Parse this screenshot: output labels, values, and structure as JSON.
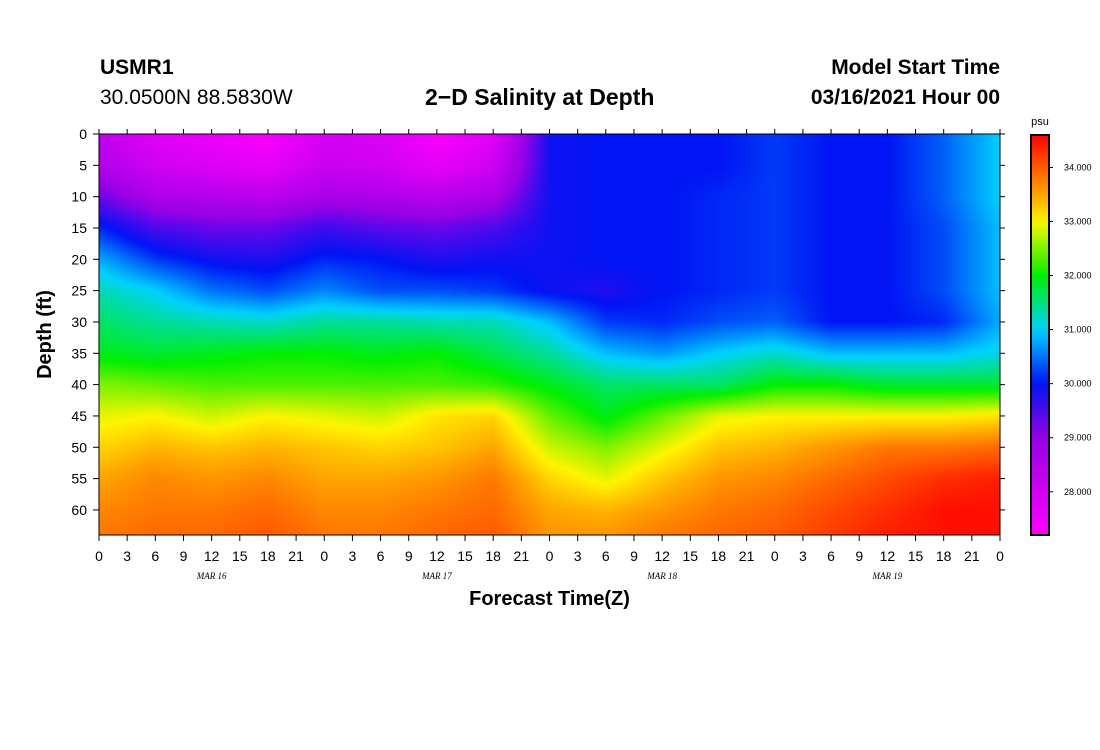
{
  "header": {
    "station": "USMR1",
    "coords": "30.0500N 88.5830W",
    "title": "2−D Salinity at Depth",
    "model_start_label": "Model Start Time",
    "model_start_value": "03/16/2021 Hour 00"
  },
  "chart_data": {
    "type": "heatmap",
    "title": "2-D Salinity at Depth",
    "xlabel": "Forecast Time(Z)",
    "ylabel": "Depth (ft)",
    "x_range_hours": [
      0,
      96
    ],
    "y_range_ft": [
      0,
      64
    ],
    "x_tick_hours": [
      0,
      3,
      6,
      9,
      12,
      15,
      18,
      21,
      24,
      27,
      30,
      33,
      36,
      39,
      42,
      45,
      48,
      51,
      54,
      57,
      60,
      63,
      66,
      69,
      72,
      75,
      78,
      81,
      84,
      87,
      90,
      93,
      96
    ],
    "x_tick_labels": [
      "0",
      "3",
      "6",
      "9",
      "12",
      "15",
      "18",
      "21",
      "0",
      "3",
      "6",
      "9",
      "12",
      "15",
      "18",
      "21",
      "0",
      "3",
      "6",
      "9",
      "12",
      "15",
      "18",
      "21",
      "0",
      "3",
      "6",
      "9",
      "12",
      "15",
      "18",
      "21",
      "0"
    ],
    "date_labels": [
      {
        "label": "MAR 16",
        "hour": 12
      },
      {
        "label": "MAR 17",
        "hour": 36
      },
      {
        "label": "MAR 18",
        "hour": 60
      },
      {
        "label": "MAR 19",
        "hour": 84
      }
    ],
    "y_ticks": [
      0,
      5,
      10,
      15,
      20,
      25,
      30,
      35,
      40,
      45,
      50,
      55,
      60
    ],
    "y_tick_labels": [
      "0",
      "5",
      "10",
      "15",
      "20",
      "25",
      "30",
      "35",
      "40",
      "45",
      "50",
      "55",
      "60"
    ],
    "colorbar": {
      "unit": "psu",
      "range": [
        27.2,
        34.6
      ],
      "ticks": [
        28.0,
        29.0,
        30.0,
        31.0,
        32.0,
        33.0,
        34.0
      ],
      "tick_labels": [
        "28.000",
        "29.000",
        "30.000",
        "31.000",
        "32.000",
        "33.000",
        "34.000"
      ]
    },
    "field": {
      "description": "Approximate salinity (psu); rows = depth in ft, columns = forecast hour",
      "hours": [
        0,
        6,
        12,
        18,
        24,
        30,
        36,
        42,
        48,
        54,
        60,
        66,
        72,
        78,
        84,
        90,
        96
      ],
      "depths": [
        0,
        5,
        10,
        15,
        20,
        25,
        30,
        35,
        40,
        45,
        50,
        55,
        60,
        64
      ],
      "values": [
        [
          28.3,
          27.7,
          27.5,
          27.3,
          27.9,
          27.8,
          27.3,
          27.7,
          29.9,
          30.0,
          30.0,
          30.0,
          30.2,
          30.0,
          30.0,
          30.4,
          31.0
        ],
        [
          28.5,
          28.0,
          27.8,
          27.6,
          28.1,
          28.0,
          27.6,
          28.0,
          29.9,
          30.0,
          30.0,
          30.0,
          30.2,
          30.0,
          30.0,
          30.4,
          31.0
        ],
        [
          29.3,
          28.6,
          28.5,
          28.4,
          28.7,
          28.6,
          28.4,
          28.7,
          29.9,
          30.0,
          30.0,
          30.1,
          30.2,
          30.0,
          30.0,
          30.4,
          31.0
        ],
        [
          30.1,
          29.5,
          29.3,
          29.3,
          29.6,
          29.4,
          29.3,
          29.5,
          29.9,
          30.0,
          30.0,
          30.1,
          30.2,
          30.0,
          30.0,
          30.3,
          30.9
        ],
        [
          30.8,
          30.2,
          29.9,
          29.8,
          30.1,
          30.0,
          29.8,
          29.9,
          29.9,
          30.0,
          30.0,
          30.1,
          30.2,
          30.0,
          30.0,
          30.3,
          30.9
        ],
        [
          31.3,
          31.0,
          30.5,
          30.3,
          30.6,
          30.3,
          30.3,
          30.2,
          29.9,
          29.8,
          30.0,
          30.1,
          30.2,
          30.0,
          30.0,
          30.3,
          30.9
        ],
        [
          31.6,
          31.4,
          31.3,
          31.2,
          31.4,
          31.4,
          31.3,
          31.3,
          30.9,
          30.2,
          30.1,
          30.3,
          30.4,
          30.0,
          30.0,
          30.1,
          30.8
        ],
        [
          31.9,
          31.8,
          31.9,
          32.0,
          32.0,
          31.9,
          32.0,
          31.7,
          31.4,
          30.9,
          30.7,
          31.0,
          31.2,
          30.9,
          30.9,
          30.9,
          31.1
        ],
        [
          32.5,
          32.4,
          32.3,
          32.3,
          32.3,
          32.3,
          32.3,
          32.2,
          31.9,
          31.6,
          31.6,
          31.6,
          32.0,
          32.0,
          31.8,
          31.8,
          31.8
        ],
        [
          32.9,
          33.0,
          32.8,
          33.0,
          32.9,
          32.8,
          33.1,
          33.2,
          32.4,
          31.9,
          32.4,
          32.9,
          33.0,
          33.0,
          33.0,
          33.0,
          33.1
        ],
        [
          33.2,
          33.4,
          33.3,
          33.4,
          33.3,
          33.2,
          33.3,
          33.5,
          32.8,
          32.5,
          32.9,
          33.3,
          33.4,
          33.6,
          33.8,
          33.8,
          33.9
        ],
        [
          33.5,
          33.7,
          33.6,
          33.7,
          33.5,
          33.5,
          33.6,
          33.8,
          33.2,
          32.9,
          33.3,
          33.6,
          33.7,
          33.9,
          34.1,
          34.3,
          34.4
        ],
        [
          33.7,
          33.8,
          33.8,
          33.9,
          33.7,
          33.7,
          33.8,
          33.9,
          33.5,
          33.4,
          33.6,
          33.8,
          33.9,
          34.1,
          34.3,
          34.5,
          34.5
        ],
        [
          33.8,
          33.9,
          33.9,
          34.0,
          33.8,
          33.8,
          33.9,
          34.0,
          33.6,
          33.6,
          33.8,
          33.9,
          34.0,
          34.2,
          34.4,
          34.5,
          34.5
        ]
      ]
    }
  }
}
